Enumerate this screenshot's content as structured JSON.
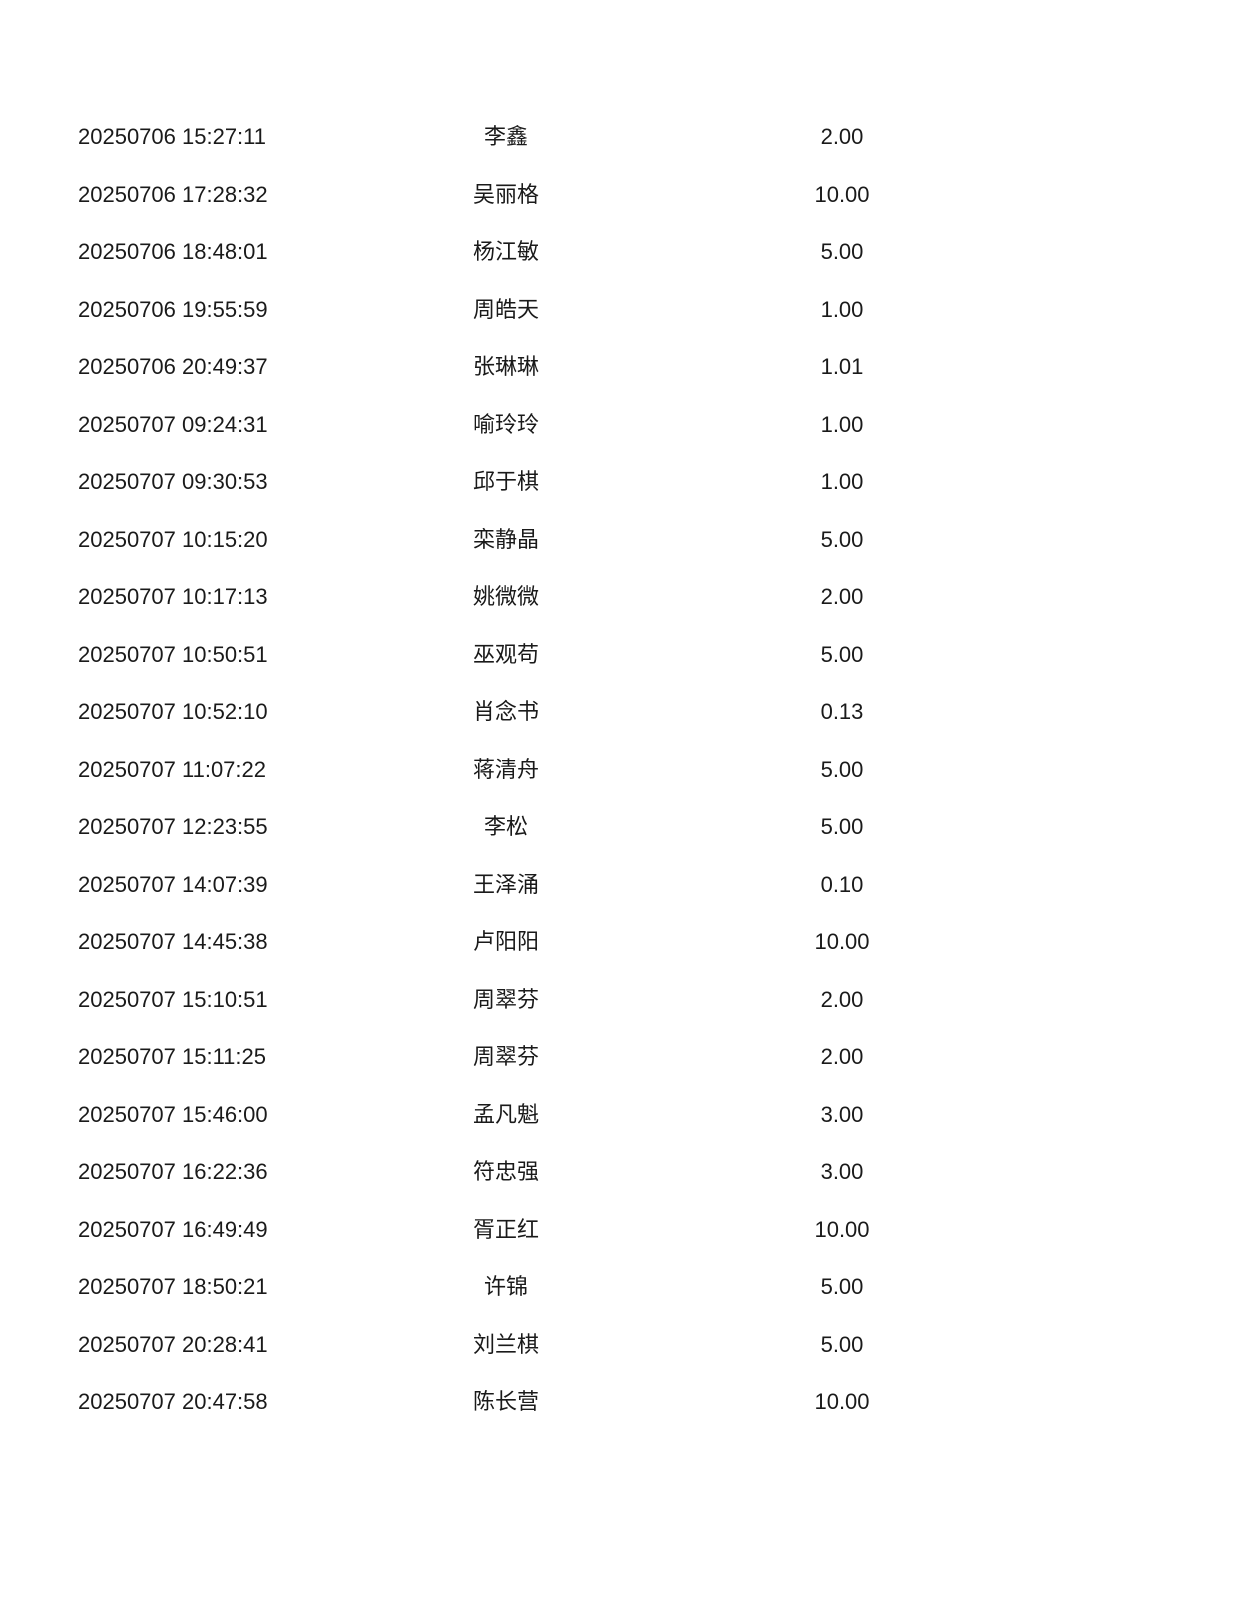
{
  "text_color": "#1a1a1a",
  "background_color": "#ffffff",
  "rows": [
    {
      "time": "20250706 15:27:11",
      "name": "李鑫",
      "amount": "2.00"
    },
    {
      "time": "20250706 17:28:32",
      "name": "吴丽格",
      "amount": "10.00"
    },
    {
      "time": "20250706 18:48:01",
      "name": "杨江敏",
      "amount": "5.00"
    },
    {
      "time": "20250706 19:55:59",
      "name": "周皓天",
      "amount": "1.00"
    },
    {
      "time": "20250706 20:49:37",
      "name": "张琳琳",
      "amount": "1.01"
    },
    {
      "time": "20250707 09:24:31",
      "name": "喻玲玲",
      "amount": "1.00"
    },
    {
      "time": "20250707 09:30:53",
      "name": "邱于棋",
      "amount": "1.00"
    },
    {
      "time": "20250707 10:15:20",
      "name": "栾静晶",
      "amount": "5.00"
    },
    {
      "time": "20250707 10:17:13",
      "name": "姚微微",
      "amount": "2.00"
    },
    {
      "time": "20250707 10:50:51",
      "name": "巫观苟",
      "amount": "5.00"
    },
    {
      "time": "20250707 10:52:10",
      "name": "肖念书",
      "amount": "0.13"
    },
    {
      "time": "20250707 11:07:22",
      "name": "蒋清舟",
      "amount": "5.00"
    },
    {
      "time": "20250707 12:23:55",
      "name": "李松",
      "amount": "5.00"
    },
    {
      "time": "20250707 14:07:39",
      "name": "王泽涌",
      "amount": "0.10"
    },
    {
      "time": "20250707 14:45:38",
      "name": "卢阳阳",
      "amount": "10.00"
    },
    {
      "time": "20250707 15:10:51",
      "name": "周翠芬",
      "amount": "2.00"
    },
    {
      "time": "20250707 15:11:25",
      "name": "周翠芬",
      "amount": "2.00"
    },
    {
      "time": "20250707 15:46:00",
      "name": "孟凡魁",
      "amount": "3.00"
    },
    {
      "time": "20250707 16:22:36",
      "name": "符忠强",
      "amount": "3.00"
    },
    {
      "time": "20250707 16:49:49",
      "name": "胥正红",
      "amount": "10.00"
    },
    {
      "time": "20250707 18:50:21",
      "name": "许锦",
      "amount": "5.00"
    },
    {
      "time": "20250707 20:28:41",
      "name": "刘兰棋",
      "amount": "5.00"
    },
    {
      "time": "20250707 20:47:58",
      "name": "陈长营",
      "amount": "10.00"
    }
  ]
}
